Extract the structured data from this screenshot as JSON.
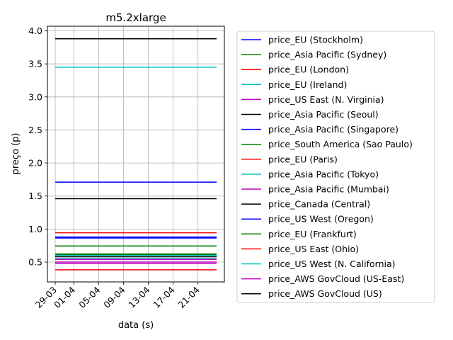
{
  "chart_data": {
    "type": "line",
    "title": "m5.2xlarge",
    "xlabel": "data (s)",
    "ylabel": "preço (p)",
    "x_start": "2018-03-29",
    "x_end": "2018-04-24",
    "x_ticks": [
      "29-03",
      "01-04",
      "05-04",
      "09-04",
      "13-04",
      "17-04",
      "21-04"
    ],
    "x_tick_dates": [
      "2018-03-29",
      "2018-04-01",
      "2018-04-05",
      "2018-04-09",
      "2018-04-13",
      "2018-04-17",
      "2018-04-21"
    ],
    "ylim": [
      0.2,
      4.07
    ],
    "y_ticks": [
      0.5,
      1.0,
      1.5,
      2.0,
      2.5,
      3.0,
      3.5,
      4.0
    ],
    "grid": true,
    "legend_position": "outside-right",
    "series": [
      {
        "name": "price_EU (Stockholm)",
        "color": "#0000ff",
        "value": 0.864
      },
      {
        "name": "price_Asia Pacific (Sydney)",
        "color": "#008000",
        "value": 0.624
      },
      {
        "name": "price_EU (London)",
        "color": "#ff0000",
        "value": 0.944
      },
      {
        "name": "price_EU (Ireland)",
        "color": "#00bfbf",
        "value": 0.552
      },
      {
        "name": "price_US East (N. Virginia)",
        "color": "#bf00bf",
        "value": 0.48
      },
      {
        "name": "price_Asia Pacific (Seoul)",
        "color": "#000000",
        "value": 0.58
      },
      {
        "name": "price_Asia Pacific (Singapore)",
        "color": "#0000ff",
        "value": 0.88
      },
      {
        "name": "price_South America (Sao Paulo)",
        "color": "#008000",
        "value": 0.744
      },
      {
        "name": "price_EU (Paris)",
        "color": "#ff0000",
        "value": 0.608
      },
      {
        "name": "price_Asia Pacific (Tokyo)",
        "color": "#00bfbf",
        "value": 0.6
      },
      {
        "name": "price_Asia Pacific (Mumbai)",
        "color": "#bf00bf",
        "value": 0.54
      },
      {
        "name": "price_Canada (Central)",
        "color": "#000000",
        "value": 1.46
      },
      {
        "name": "price_US West (Oregon)",
        "color": "#0000ff",
        "value": 1.71
      },
      {
        "name": "price_EU (Frankfurt)",
        "color": "#008000",
        "value": 0.616
      },
      {
        "name": "price_US East (Ohio)",
        "color": "#ff0000",
        "value": 0.384
      },
      {
        "name": "price_US West (N. California)",
        "color": "#00bfbf",
        "value": 3.45
      },
      {
        "name": "price_AWS GovCloud (US-East)",
        "color": "#bf00bf",
        "value": 0.5
      },
      {
        "name": "price_AWS GovCloud (US)",
        "color": "#000000",
        "value": 3.88
      }
    ]
  }
}
